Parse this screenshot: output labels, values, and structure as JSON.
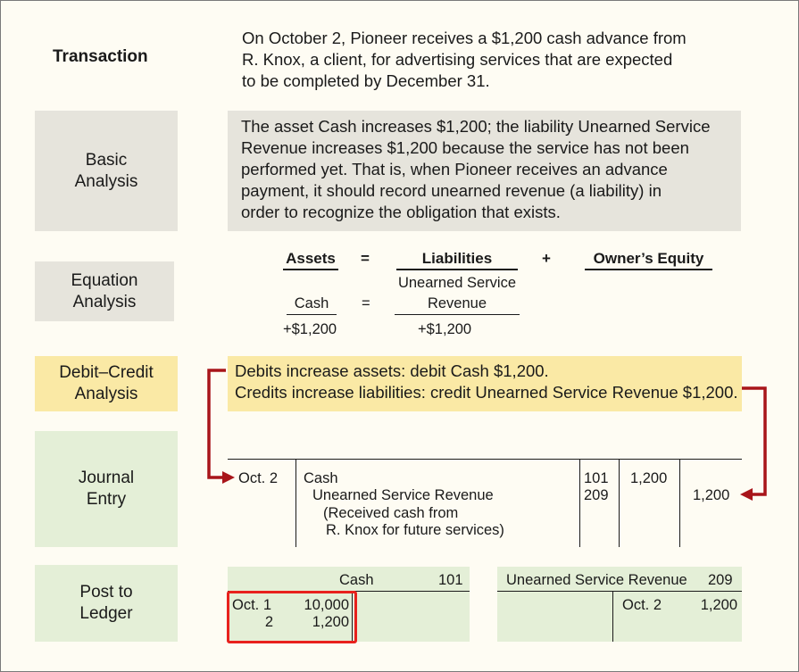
{
  "rows": {
    "transaction": {
      "label": "Transaction",
      "lines": [
        "On October 2, Pioneer receives a $1,200 cash advance from",
        "R. Knox, a client, for advertising services that are expected",
        "to be completed by December 31."
      ]
    },
    "basic": {
      "label_1": "Basic",
      "label_2": "Analysis",
      "lines": [
        "The asset Cash increases $1,200; the liability Unearned Service",
        "Revenue increases $1,200 because the service has not been",
        "performed yet. That is, when Pioneer receives an advance",
        "payment, it should record unearned revenue (a liability) in",
        "order to recognize the obligation that exists."
      ]
    },
    "equation": {
      "label_1": "Equation",
      "label_2": "Analysis",
      "assets": "Assets",
      "eq": "=",
      "liabilities": "Liabilities",
      "plus": "+",
      "equity": "Owner’s Equity",
      "asset_item": "Cash",
      "liab_item_1": "Unearned Service",
      "liab_item_2": "Revenue",
      "asset_value": "+$1,200",
      "liab_value": "+$1,200"
    },
    "debit_credit": {
      "label_1": "Debit–Credit",
      "label_2": "Analysis",
      "line_1": "Debits increase assets: debit Cash $1,200.",
      "line_2": "Credits increase liabilities: credit Unearned Service Revenue $1,200."
    },
    "journal": {
      "label_1": "Journal",
      "label_2": "Entry",
      "date": "Oct. 2",
      "account_1": "Cash",
      "account_2": "Unearned Service Revenue",
      "explanation_1": "(Received cash from",
      "explanation_2": "R. Knox for future services)",
      "ref_1": "101",
      "ref_2": "209",
      "debit": "1,200",
      "credit": "1,200"
    },
    "ledger": {
      "label_1": "Post to",
      "label_2": "Ledger",
      "cash_title": "Cash",
      "cash_no": "101",
      "cash_entries": [
        {
          "date": "Oct. 1",
          "amount": "10,000"
        },
        {
          "date": "2",
          "amount": "1,200"
        }
      ],
      "usr_title": "Unearned Service Revenue",
      "usr_no": "209",
      "usr_date": "Oct. 2",
      "usr_amount": "1,200"
    }
  },
  "colors": {
    "gray": "#e6e4dc",
    "yellow": "#fae9a5",
    "green": "#e4efd7",
    "arrow": "#a8151a",
    "highlight": "#e8211d"
  }
}
